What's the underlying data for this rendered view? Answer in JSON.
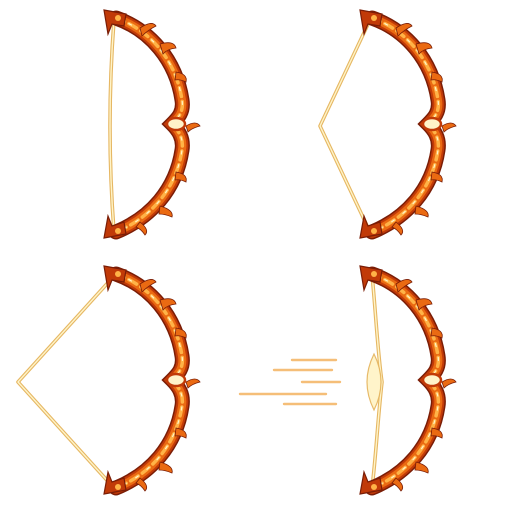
{
  "sprite_sheet": {
    "frame_count": 4,
    "frames": [
      {
        "name": "idle",
        "draw_level": 0.0,
        "release": false
      },
      {
        "name": "half-draw",
        "draw_level": 0.5,
        "release": false
      },
      {
        "name": "full-draw",
        "draw_level": 1.0,
        "release": false
      },
      {
        "name": "release",
        "draw_level": 0.0,
        "release": true
      }
    ]
  },
  "colors": {
    "background": "#ffffff",
    "bow_outline": "#7a1d06",
    "bow_dark": "#c13a08",
    "bow_mid": "#ea6a12",
    "bow_light": "#ffb347",
    "bow_highlight": "#fff3c9",
    "string_outline": "#e6b763",
    "string_fill": "#fff4c8",
    "release_streak": "#f4b76a"
  }
}
